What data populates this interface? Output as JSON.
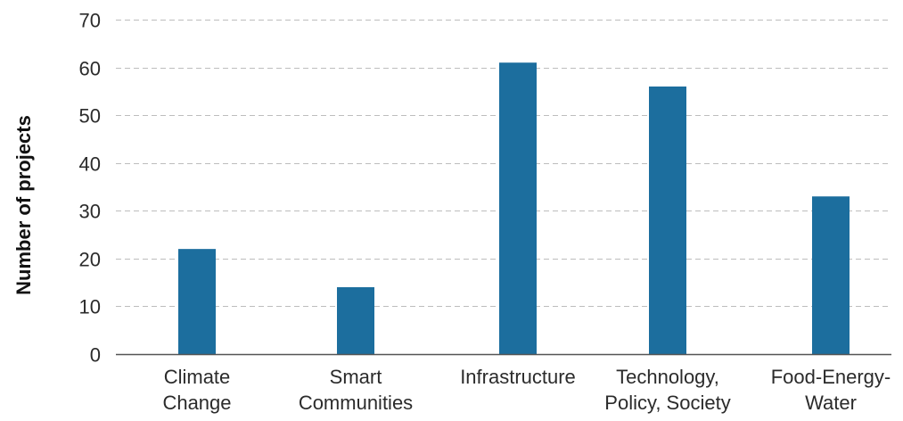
{
  "chart_data": {
    "type": "bar",
    "title": "",
    "xlabel": "",
    "ylabel": "Number of projects",
    "categories": [
      [
        "Climate",
        "Change"
      ],
      [
        "Smart",
        "Communities"
      ],
      [
        "Infrastructure"
      ],
      [
        "Technology,",
        "Policy, Society"
      ],
      [
        "Food-Energy-",
        "Water"
      ]
    ],
    "values": [
      22,
      14,
      61,
      56,
      33
    ],
    "ylim": [
      0,
      70
    ],
    "yticks": [
      0,
      10,
      20,
      30,
      40,
      50,
      60,
      70
    ],
    "grid": true,
    "grid_style": "dashed",
    "legend": "none",
    "colors": {
      "bar": "#1c6e9e",
      "grid": "#bdbdbd",
      "axis": "#555555"
    }
  }
}
